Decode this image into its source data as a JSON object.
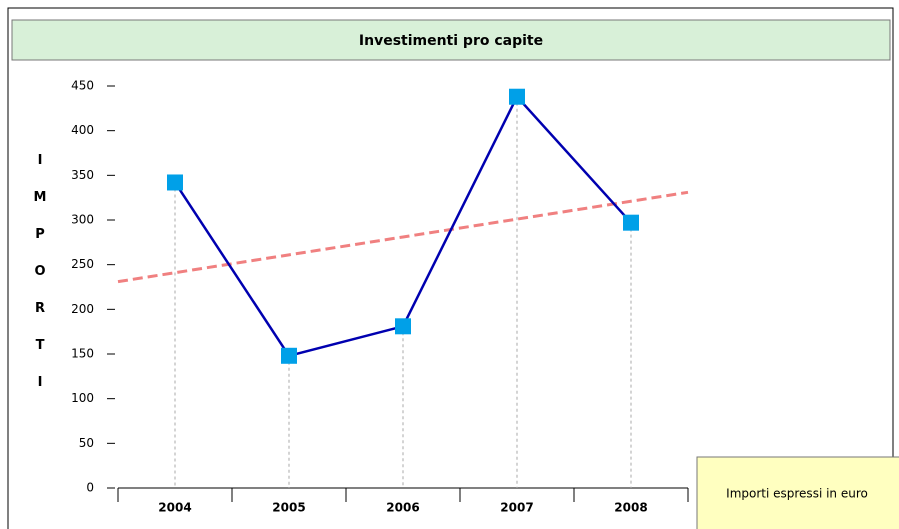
{
  "chart_data": {
    "type": "line",
    "title": "Investimenti pro capite",
    "y_label": "IMPORTI",
    "categories": [
      "2004",
      "2005",
      "2006",
      "2007",
      "2008"
    ],
    "series": [
      {
        "name": "Investimenti pro capite",
        "color": "#0000b0",
        "marker_color": "#00a0e8",
        "values": [
          342,
          148,
          181,
          438,
          297
        ]
      },
      {
        "name": "Trend",
        "color": "#f08080",
        "values": [
          241,
          261,
          281,
          301,
          321
        ]
      }
    ],
    "ylim": [
      0,
      450
    ],
    "yticks": [
      0,
      50,
      100,
      150,
      200,
      250,
      300,
      350,
      400,
      450
    ],
    "note": "Importi espressi in euro"
  }
}
